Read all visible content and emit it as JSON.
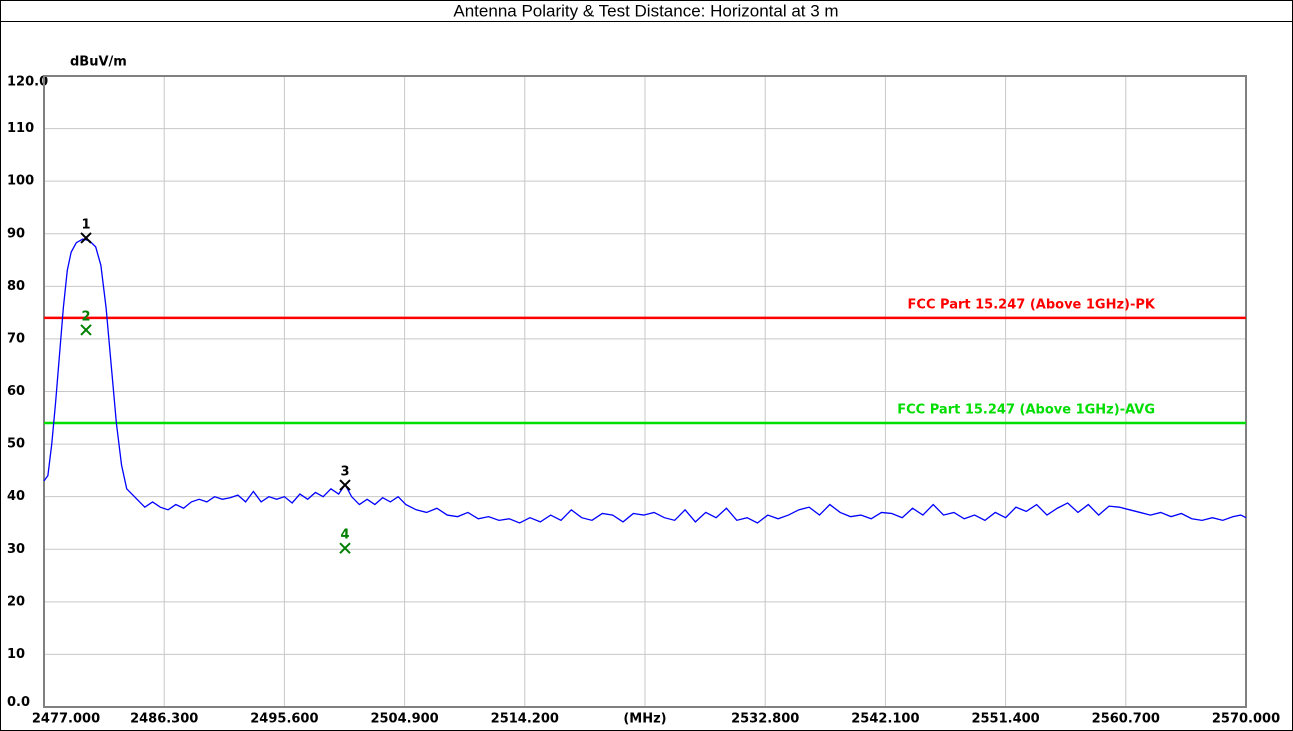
{
  "chart_data": {
    "type": "line",
    "title": "Antenna Polarity & Test Distance: Horizontal at 3 m",
    "y_label": "dBuV/m",
    "xlim": [
      2477,
      2570
    ],
    "ylim": [
      0,
      120
    ],
    "xticks": [
      {
        "value": 2477,
        "label": "2477.000"
      },
      {
        "value": 2486.3,
        "label": "2486.300"
      },
      {
        "value": 2495.6,
        "label": "2495.600"
      },
      {
        "value": 2504.9,
        "label": "2504.900"
      },
      {
        "value": 2514.2,
        "label": "2514.200"
      },
      {
        "value": 2523.5,
        "label": "(MHz)"
      },
      {
        "value": 2532.8,
        "label": "2532.800"
      },
      {
        "value": 2542.1,
        "label": "2542.100"
      },
      {
        "value": 2551.4,
        "label": "2551.400"
      },
      {
        "value": 2560.7,
        "label": "2560.700"
      },
      {
        "value": 2570,
        "label": "2570.000"
      }
    ],
    "yticks": [
      {
        "value": 0,
        "label": "0.0"
      },
      10,
      20,
      30,
      40,
      50,
      60,
      70,
      80,
      90,
      100,
      110,
      {
        "value": 120,
        "label": "120.0"
      }
    ],
    "grid": true,
    "x": [
      2477.0,
      2477.3,
      2477.6,
      2477.9,
      2478.2,
      2478.5,
      2478.8,
      2479.1,
      2479.5,
      2480.0,
      2480.5,
      2481.0,
      2481.4,
      2481.8,
      2482.2,
      2482.6,
      2483.0,
      2483.4,
      2483.8,
      2484.2,
      2484.8,
      2485.4,
      2486.0,
      2486.6,
      2487.2,
      2487.8,
      2488.4,
      2489.0,
      2489.6,
      2490.2,
      2490.8,
      2491.4,
      2492.0,
      2492.6,
      2493.2,
      2493.8,
      2494.4,
      2495.0,
      2495.6,
      2496.2,
      2496.8,
      2497.4,
      2498.0,
      2498.6,
      2499.2,
      2499.8,
      2500.3,
      2500.8,
      2501.4,
      2502.0,
      2502.6,
      2503.2,
      2503.8,
      2504.4,
      2505.0,
      2505.8,
      2506.6,
      2507.4,
      2508.2,
      2509.0,
      2509.8,
      2510.6,
      2511.4,
      2512.2,
      2513.0,
      2513.8,
      2514.6,
      2515.4,
      2516.2,
      2517.0,
      2517.8,
      2518.6,
      2519.4,
      2520.2,
      2521.0,
      2521.8,
      2522.6,
      2523.4,
      2524.2,
      2525.0,
      2525.8,
      2526.6,
      2527.4,
      2528.2,
      2529.0,
      2529.8,
      2530.6,
      2531.4,
      2532.2,
      2533.0,
      2533.8,
      2534.6,
      2535.4,
      2536.2,
      2537.0,
      2537.8,
      2538.6,
      2539.4,
      2540.2,
      2541.0,
      2541.8,
      2542.6,
      2543.4,
      2544.2,
      2545.0,
      2545.8,
      2546.6,
      2547.4,
      2548.2,
      2549.0,
      2549.8,
      2550.6,
      2551.4,
      2552.2,
      2553.0,
      2553.8,
      2554.6,
      2555.4,
      2556.2,
      2557.0,
      2557.8,
      2558.6,
      2559.4,
      2560.2,
      2561.0,
      2561.8,
      2562.6,
      2563.4,
      2564.2,
      2565.0,
      2565.8,
      2566.6,
      2567.4,
      2568.2,
      2569.0,
      2569.6,
      2570.0
    ],
    "series": [
      {
        "color": "#0000ff",
        "values": [
          43,
          44,
          50,
          58,
          67,
          76,
          83,
          86.5,
          88.3,
          89.0,
          88.7,
          87.5,
          84,
          76,
          65,
          54,
          46,
          41.5,
          40.5,
          39.5,
          38,
          39,
          38,
          37.5,
          38.5,
          37.8,
          39,
          39.5,
          39,
          40,
          39.5,
          39.8,
          40.3,
          39,
          41,
          39,
          40,
          39.5,
          40,
          38.8,
          40.5,
          39.5,
          40.8,
          40,
          41.5,
          40.5,
          42.3,
          40,
          38.5,
          39.5,
          38.5,
          39.8,
          39,
          40,
          38.5,
          37.5,
          37,
          37.8,
          36.5,
          36.2,
          37,
          35.8,
          36.2,
          35.5,
          35.8,
          35,
          36,
          35.2,
          36.5,
          35.5,
          37.5,
          36,
          35.5,
          36.8,
          36.5,
          35.2,
          36.8,
          36.5,
          37,
          36,
          35.5,
          37.5,
          35.2,
          37,
          36,
          37.8,
          35.5,
          36,
          35,
          36.5,
          35.8,
          36.5,
          37.5,
          38,
          36.5,
          38.5,
          37,
          36.2,
          36.5,
          35.8,
          37,
          36.8,
          36,
          37.8,
          36.5,
          38.5,
          36.5,
          37,
          35.8,
          36.5,
          35.5,
          37,
          36,
          38,
          37.2,
          38.5,
          36.5,
          37.8,
          38.8,
          37,
          38.5,
          36.5,
          38.2,
          38,
          37.5,
          37,
          36.5,
          37,
          36.2,
          36.8,
          35.8,
          35.5,
          36,
          35.5,
          36.2,
          36.5,
          36
        ]
      }
    ],
    "limit_lines": [
      {
        "name": "FCC Part 15.247 (Above 1GHz)-PK",
        "value": 74,
        "color": "#ff0000"
      },
      {
        "name": "FCC Part 15.247 (Above 1GHz)-AVG",
        "value": 54,
        "color": "#00dd00"
      }
    ],
    "markers": [
      {
        "label": "1",
        "x": 2480.25,
        "value": 89.2,
        "color": "#000000"
      },
      {
        "label": "2",
        "x": 2480.25,
        "value": 71.7,
        "color": "#008000"
      },
      {
        "label": "3",
        "x": 2500.29,
        "value": 42.2,
        "color": "#000000"
      },
      {
        "label": "4",
        "x": 2500.29,
        "value": 30.2,
        "color": "#008000"
      }
    ]
  }
}
